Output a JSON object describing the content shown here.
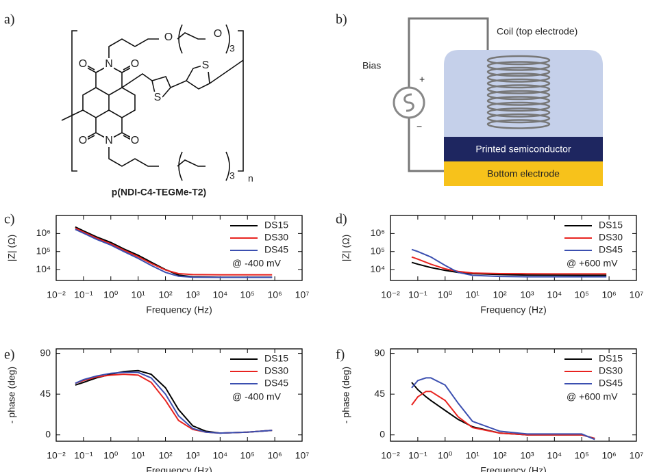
{
  "panel_labels": [
    "a)",
    "b)"
  ],
  "structure": {
    "atoms": [
      "O",
      "O",
      "N",
      "N",
      "O",
      "O",
      "O",
      "O",
      "S",
      "S"
    ],
    "subscripts": [
      "3",
      "3"
    ],
    "repeat": "n",
    "name": "p(NDI-C4-TEGMe-T2)"
  },
  "device": {
    "coil": "Coil (top electrode)",
    "bias": "Bias",
    "plus": "+",
    "minus": "−",
    "semiconductor": "Printed semiconductor",
    "bottom": "Bottom electrode"
  },
  "chart_data": [
    {
      "type": "line",
      "label": "c)",
      "xlabel": "Frequency (Hz)",
      "ylabel": "|Z| (Ω)",
      "annotation": "@ -400 mV",
      "log_x": true,
      "log_y": true,
      "legend": "upper right",
      "x": [
        0.05,
        0.1,
        0.3,
        1,
        3,
        10,
        30,
        100,
        300,
        1000,
        10000,
        100000,
        800000
      ],
      "series": [
        {
          "name": "DS15",
          "color": "#000000",
          "values": [
            2300000,
            1400000,
            650000,
            320000,
            140000,
            62000,
            26000,
            10000,
            5000,
            4000,
            3800,
            3800,
            3800
          ]
        },
        {
          "name": "DS30",
          "color": "#e8231f",
          "values": [
            2000000,
            1200000,
            560000,
            270000,
            120000,
            52000,
            22000,
            9500,
            6000,
            5300,
            5100,
            5100,
            5100
          ]
        },
        {
          "name": "DS45",
          "color": "#3b4fb0",
          "values": [
            1700000,
            1050000,
            480000,
            230000,
            100000,
            42000,
            17000,
            7000,
            4300,
            3800,
            3700,
            3700,
            3700
          ]
        }
      ],
      "xlim": [
        0.01,
        10000000
      ],
      "ylim": [
        2500,
        10000000
      ],
      "xticks": [
        {
          "value": 0.01,
          "label": "10⁻²"
        },
        {
          "value": 0.1,
          "label": "10⁻¹"
        },
        {
          "value": 1,
          "label": "10⁰"
        },
        {
          "value": 10,
          "label": "10¹"
        },
        {
          "value": 100,
          "label": "10²"
        },
        {
          "value": 1000,
          "label": "10³"
        },
        {
          "value": 10000,
          "label": "10⁴"
        },
        {
          "value": 100000,
          "label": "10⁵"
        },
        {
          "value": 1000000,
          "label": "10⁶"
        },
        {
          "value": 10000000,
          "label": "10⁷"
        }
      ],
      "yticks": [
        {
          "value": 10000,
          "label": "10⁴"
        },
        {
          "value": 100000,
          "label": "10⁵"
        },
        {
          "value": 1000000,
          "label": "10⁶"
        }
      ]
    },
    {
      "type": "line",
      "label": "d)",
      "xlabel": "Frequency (Hz)",
      "ylabel": "|Z| (Ω)",
      "annotation": "@ +600 mV",
      "log_x": true,
      "log_y": true,
      "legend": "upper right",
      "x": [
        0.06,
        0.1,
        0.3,
        1,
        3,
        10,
        100,
        1000,
        10000,
        100000,
        800000
      ],
      "series": [
        {
          "name": "DS15",
          "color": "#000000",
          "values": [
            25000,
            20000,
            13000,
            9000,
            7000,
            6000,
            5300,
            5000,
            4900,
            4800,
            4800
          ]
        },
        {
          "name": "DS30",
          "color": "#e8231f",
          "values": [
            50000,
            38000,
            20000,
            11000,
            8000,
            6500,
            6000,
            5900,
            5800,
            5800,
            5800
          ]
        },
        {
          "name": "DS45",
          "color": "#3b4fb0",
          "values": [
            130000,
            100000,
            50000,
            17000,
            7000,
            4800,
            4200,
            4000,
            4000,
            4000,
            4000
          ]
        }
      ],
      "xlim": [
        0.01,
        10000000
      ],
      "ylim": [
        2500,
        10000000
      ],
      "xticks": [
        {
          "value": 0.01,
          "label": "10⁻²"
        },
        {
          "value": 0.1,
          "label": "10⁻¹"
        },
        {
          "value": 1,
          "label": "10⁰"
        },
        {
          "value": 10,
          "label": "10¹"
        },
        {
          "value": 100,
          "label": "10²"
        },
        {
          "value": 1000,
          "label": "10³"
        },
        {
          "value": 10000,
          "label": "10⁴"
        },
        {
          "value": 100000,
          "label": "10⁵"
        },
        {
          "value": 1000000,
          "label": "10⁶"
        },
        {
          "value": 10000000,
          "label": "10⁷"
        }
      ],
      "yticks": [
        {
          "value": 10000,
          "label": "10⁴"
        },
        {
          "value": 100000,
          "label": "10⁵"
        },
        {
          "value": 1000000,
          "label": "10⁶"
        }
      ]
    },
    {
      "type": "line",
      "label": "e)",
      "xlabel": "Frequency (Hz)",
      "ylabel": "- phase (deg)",
      "annotation": "@ -400 mV",
      "log_x": true,
      "log_y": false,
      "legend": "upper right",
      "x": [
        0.05,
        0.1,
        0.3,
        1,
        3,
        10,
        30,
        100,
        300,
        1000,
        3000,
        10000,
        100000,
        800000
      ],
      "series": [
        {
          "name": "DS15",
          "color": "#000000",
          "values": [
            55,
            58,
            63,
            67,
            70,
            71,
            67,
            52,
            28,
            10,
            4,
            2,
            3,
            5
          ]
        },
        {
          "name": "DS30",
          "color": "#e8231f",
          "values": [
            57,
            60,
            64,
            66,
            67,
            66,
            58,
            38,
            16,
            6,
            3,
            2,
            3,
            5
          ]
        },
        {
          "name": "DS45",
          "color": "#3b4fb0",
          "values": [
            57,
            61,
            65,
            68,
            69,
            69,
            63,
            45,
            21,
            7,
            3,
            2,
            3,
            5
          ]
        }
      ],
      "xlim": [
        0.01,
        10000000
      ],
      "ylim": [
        -7,
        95
      ],
      "xticks": [
        {
          "value": 0.01,
          "label": "10⁻²"
        },
        {
          "value": 0.1,
          "label": "10⁻¹"
        },
        {
          "value": 1,
          "label": "10⁰"
        },
        {
          "value": 10,
          "label": "10¹"
        },
        {
          "value": 100,
          "label": "10²"
        },
        {
          "value": 1000,
          "label": "10³"
        },
        {
          "value": 10000,
          "label": "10⁴"
        },
        {
          "value": 100000,
          "label": "10⁵"
        },
        {
          "value": 1000000,
          "label": "10⁶"
        },
        {
          "value": 10000000,
          "label": "10⁷"
        }
      ],
      "yticks": [
        0,
        45,
        90
      ]
    },
    {
      "type": "line",
      "label": "f)",
      "xlabel": "Frequency (Hz)",
      "ylabel": "- phase (deg)",
      "annotation": "@ +600 mV",
      "log_x": true,
      "log_y": false,
      "legend": "upper right",
      "x": [
        0.06,
        0.1,
        0.2,
        0.3,
        1,
        3,
        10,
        100,
        1000,
        10000,
        100000,
        300000
      ],
      "series": [
        {
          "name": "DS15",
          "color": "#000000",
          "values": [
            58,
            50,
            42,
            38,
            27,
            17,
            9,
            2,
            0,
            0,
            0,
            -4
          ]
        },
        {
          "name": "DS30",
          "color": "#e8231f",
          "values": [
            33,
            42,
            48,
            48,
            38,
            20,
            8,
            2,
            0,
            0,
            0,
            -4
          ]
        },
        {
          "name": "DS45",
          "color": "#3b4fb0",
          "values": [
            52,
            60,
            63,
            63,
            55,
            35,
            15,
            4,
            1,
            1,
            1,
            -5
          ]
        }
      ],
      "xlim": [
        0.01,
        10000000
      ],
      "ylim": [
        -7,
        95
      ],
      "xticks": [
        {
          "value": 0.01,
          "label": "10⁻²"
        },
        {
          "value": 0.1,
          "label": "10⁻¹"
        },
        {
          "value": 1,
          "label": "10⁰"
        },
        {
          "value": 10,
          "label": "10¹"
        },
        {
          "value": 100,
          "label": "10²"
        },
        {
          "value": 1000,
          "label": "10³"
        },
        {
          "value": 10000,
          "label": "10⁴"
        },
        {
          "value": 100000,
          "label": "10⁵"
        },
        {
          "value": 1000000,
          "label": "10⁶"
        },
        {
          "value": 10000000,
          "label": "10⁷"
        }
      ],
      "yticks": [
        0,
        45,
        90
      ]
    }
  ]
}
